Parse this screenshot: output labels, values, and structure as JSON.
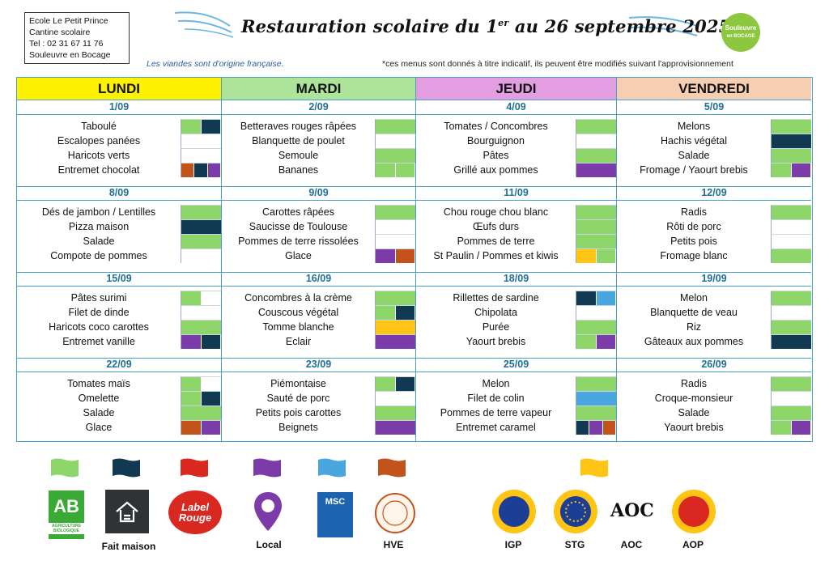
{
  "school": {
    "lines": [
      "Ecole Le Petit Prince",
      "Cantine scolaire",
      "Tel : 02 31 67 11 76",
      "Souleuvre en Bocage"
    ]
  },
  "title": {
    "main": "Restauration scolaire du 1",
    "sup": "er",
    "rest": " au 26 septembre 2025 *"
  },
  "logo": {
    "line1": "Souleuvre",
    "line2": "en BOCAGE"
  },
  "notes": {
    "left": "Les viandes sont d'origine française.",
    "right": "*ces menus sont donnés à titre indicatif, ils peuvent être modifiés suivant l'approvisionnement"
  },
  "colors": {
    "bio": "#8ed66a",
    "maison": "#113a52",
    "label_rouge": "#d92820",
    "local": "#7b3ba8",
    "msc": "#4aa6df",
    "hve": "#c2541b",
    "igp": "#ffc414",
    "blank": "#ffffff"
  },
  "days": [
    {
      "name": "LUNDI",
      "color": "#fff200",
      "weeks": [
        {
          "date": "1/09",
          "dishes": [
            {
              "name": "Taboulé",
              "tags": [
                "bio",
                "maison"
              ]
            },
            {
              "name": "Escalopes panées",
              "tags": [
                "blank"
              ]
            },
            {
              "name": "Haricots verts",
              "tags": [
                "blank"
              ]
            },
            {
              "name": "Entremet chocolat",
              "tags": [
                "hve",
                "maison",
                "local"
              ]
            }
          ]
        },
        {
          "date": "8/09",
          "dishes": [
            {
              "name": "Dés de jambon / Lentilles",
              "tags": [
                "bio"
              ]
            },
            {
              "name": "Pizza maison",
              "tags": [
                "maison"
              ]
            },
            {
              "name": "Salade",
              "tags": [
                "bio"
              ]
            },
            {
              "name": "Compote de pommes",
              "tags": [
                "blank"
              ]
            }
          ]
        },
        {
          "date": "15/09",
          "dishes": [
            {
              "name": "Pâtes surimi",
              "tags": [
                "bio",
                "blank"
              ]
            },
            {
              "name": "Filet de dinde",
              "tags": [
                "blank"
              ]
            },
            {
              "name": "Haricots coco carottes",
              "tags": [
                "bio"
              ]
            },
            {
              "name": "Entremet vanille",
              "tags": [
                "local",
                "maison"
              ]
            }
          ]
        },
        {
          "date": "22/09",
          "dishes": [
            {
              "name": "Tomates maïs",
              "tags": [
                "bio",
                "blank"
              ]
            },
            {
              "name": "Omelette",
              "tags": [
                "bio",
                "maison"
              ]
            },
            {
              "name": "Salade",
              "tags": [
                "bio"
              ]
            },
            {
              "name": "Glace",
              "tags": [
                "hve",
                "local"
              ]
            }
          ]
        }
      ]
    },
    {
      "name": "MARDI",
      "color": "#aee39a",
      "weeks": [
        {
          "date": "2/09",
          "dishes": [
            {
              "name": "Betteraves rouges râpées",
              "tags": [
                "bio"
              ]
            },
            {
              "name": "Blanquette de poulet",
              "tags": [
                "blank"
              ]
            },
            {
              "name": "Semoule",
              "tags": [
                "bio"
              ]
            },
            {
              "name": "Bananes",
              "tags": [
                "bio",
                "bio"
              ]
            }
          ]
        },
        {
          "date": "9/09",
          "dishes": [
            {
              "name": "Carottes râpées",
              "tags": [
                "bio"
              ]
            },
            {
              "name": "Saucisse de Toulouse",
              "tags": [
                "blank"
              ]
            },
            {
              "name": "Pommes de terre rissolées",
              "tags": [
                "blank"
              ]
            },
            {
              "name": "Glace",
              "tags": [
                "local",
                "hve"
              ]
            }
          ]
        },
        {
          "date": "16/09",
          "dishes": [
            {
              "name": "Concombres à la crème",
              "tags": [
                "bio"
              ]
            },
            {
              "name": "Couscous végétal",
              "tags": [
                "bio",
                "maison"
              ]
            },
            {
              "name": "Tomme blanche",
              "tags": [
                "igp"
              ]
            },
            {
              "name": "Eclair",
              "tags": [
                "local"
              ]
            }
          ]
        },
        {
          "date": "23/09",
          "dishes": [
            {
              "name": "Piémontaise",
              "tags": [
                "bio",
                "maison"
              ]
            },
            {
              "name": "Sauté de porc",
              "tags": [
                "blank"
              ]
            },
            {
              "name": "Petits pois carottes",
              "tags": [
                "bio"
              ]
            },
            {
              "name": "Beignets",
              "tags": [
                "local"
              ]
            }
          ]
        }
      ]
    },
    {
      "name": "JEUDI",
      "color": "#e29ee0",
      "weeks": [
        {
          "date": "4/09",
          "dishes": [
            {
              "name": "Tomates / Concombres",
              "tags": [
                "bio"
              ]
            },
            {
              "name": "Bourguignon",
              "tags": [
                "blank"
              ]
            },
            {
              "name": "Pâtes",
              "tags": [
                "bio"
              ]
            },
            {
              "name": "Grillé aux pommes",
              "tags": [
                "local"
              ]
            }
          ]
        },
        {
          "date": "11/09",
          "dishes": [
            {
              "name": "Chou rouge chou blanc",
              "tags": [
                "bio"
              ]
            },
            {
              "name": "Œufs durs",
              "tags": [
                "bio"
              ]
            },
            {
              "name": "Pommes de terre",
              "tags": [
                "bio"
              ]
            },
            {
              "name": "St Paulin / Pommes et kiwis",
              "tags": [
                "igp",
                "bio"
              ]
            }
          ]
        },
        {
          "date": "18/09",
          "dishes": [
            {
              "name": "Rillettes de sardine",
              "tags": [
                "maison",
                "msc"
              ]
            },
            {
              "name": "Chipolata",
              "tags": [
                "blank"
              ]
            },
            {
              "name": "Purée",
              "tags": [
                "bio"
              ]
            },
            {
              "name": "Yaourt brebis",
              "tags": [
                "bio",
                "local"
              ]
            }
          ]
        },
        {
          "date": "25/09",
          "dishes": [
            {
              "name": "Melon",
              "tags": [
                "bio"
              ]
            },
            {
              "name": "Filet de colin",
              "tags": [
                "msc"
              ]
            },
            {
              "name": "Pommes de terre vapeur",
              "tags": [
                "bio"
              ]
            },
            {
              "name": "Entremet caramel",
              "tags": [
                "maison",
                "local",
                "hve"
              ]
            }
          ]
        }
      ]
    },
    {
      "name": "VENDREDI",
      "color": "#f6cfb3",
      "weeks": [
        {
          "date": "5/09",
          "dishes": [
            {
              "name": "Melons",
              "tags": [
                "bio"
              ]
            },
            {
              "name": "Hachis végétal",
              "tags": [
                "maison"
              ]
            },
            {
              "name": "Salade",
              "tags": [
                "bio"
              ]
            },
            {
              "name": "Fromage / Yaourt brebis",
              "tags": [
                "bio",
                "local"
              ]
            }
          ]
        },
        {
          "date": "12/09",
          "dishes": [
            {
              "name": "Radis",
              "tags": [
                "bio"
              ]
            },
            {
              "name": "Rôti de porc",
              "tags": [
                "blank"
              ]
            },
            {
              "name": "Petits pois",
              "tags": [
                "blank"
              ]
            },
            {
              "name": "Fromage blanc",
              "tags": [
                "bio"
              ]
            }
          ]
        },
        {
          "date": "19/09",
          "dishes": [
            {
              "name": "Melon",
              "tags": [
                "bio"
              ]
            },
            {
              "name": "Blanquette de veau",
              "tags": [
                "blank"
              ]
            },
            {
              "name": "Riz",
              "tags": [
                "bio"
              ]
            },
            {
              "name": "Gâteaux aux pommes",
              "tags": [
                "maison"
              ]
            }
          ]
        },
        {
          "date": "26/09",
          "dishes": [
            {
              "name": "Radis",
              "tags": [
                "bio"
              ]
            },
            {
              "name": "Croque-monsieur",
              "tags": [
                "blank"
              ]
            },
            {
              "name": "Salade",
              "tags": [
                "bio"
              ]
            },
            {
              "name": "Yaourt brebis",
              "tags": [
                "bio",
                "local"
              ]
            }
          ]
        }
      ]
    }
  ],
  "legend": [
    {
      "key": "bio",
      "label": "",
      "badge": "AB",
      "badge_sub": "AGRICULTURE BIOLOGIQUE"
    },
    {
      "key": "maison",
      "label": "Fait maison"
    },
    {
      "key": "label_rouge",
      "label": "",
      "badge": "Label Rouge"
    },
    {
      "key": "local",
      "label": "Local"
    },
    {
      "key": "msc",
      "label": "",
      "badge": "MSC"
    },
    {
      "key": "hve",
      "label": "HVE"
    },
    {
      "key": "igp",
      "label": "IGP"
    },
    {
      "key": "stg",
      "label": "STG"
    },
    {
      "key": "aoc",
      "label": "AOC",
      "badge": "AOC"
    },
    {
      "key": "aop",
      "label": "AOP"
    }
  ]
}
